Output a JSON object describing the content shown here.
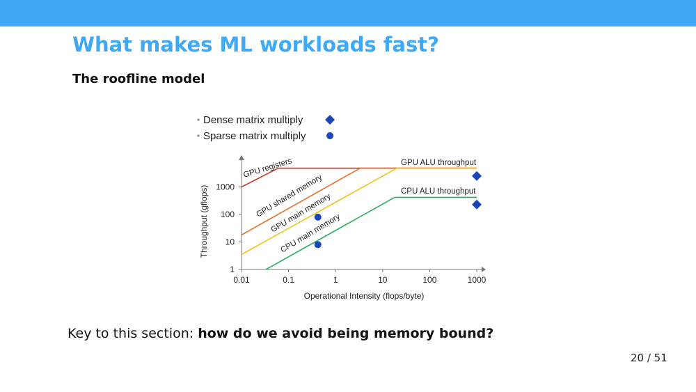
{
  "slide": {
    "title": "What makes ML workloads fast?",
    "subtitle": "The roofline model",
    "key_prefix": "Key to this section: ",
    "key_bold": "how do we avoid being memory bound?",
    "page": "20 / 51"
  },
  "colors": {
    "accent": "#3fa9f5",
    "gpu_registers": "#c0392b",
    "gpu_shared_memory": "#e8702a",
    "gpu_main_memory": "#f0c419",
    "cpu_main_memory": "#27ae60",
    "marker": "#1a44b8"
  },
  "chart_data": {
    "type": "line",
    "xscale": "log",
    "yscale": "log",
    "xlabel": "Operational Intensity (flops/byte)",
    "ylabel": "Throughput (gflops)",
    "xlim": [
      0.01,
      1000
    ],
    "ylim": [
      1,
      5000
    ],
    "x_ticks": [
      0.01,
      0.1,
      1,
      10,
      100,
      1000
    ],
    "x_tick_labels": [
      "0.01",
      "0.1",
      "1",
      "10",
      "100",
      "1000"
    ],
    "y_ticks": [
      1,
      10,
      100,
      1000
    ],
    "y_tick_labels": [
      "1",
      "10",
      "100",
      "1000"
    ],
    "legend": [
      {
        "label": "Dense matrix multiply",
        "marker": "diamond"
      },
      {
        "label": "Sparse matrix multiply",
        "marker": "circle"
      }
    ],
    "series": [
      {
        "name": "GPU registers",
        "color": "#c0392b",
        "x": [
          0.01,
          0.06,
          1000
        ],
        "y": [
          1000,
          4800,
          4800
        ]
      },
      {
        "name": "GPU shared memory",
        "color": "#e8702a",
        "x": [
          0.01,
          3.3,
          1000
        ],
        "y": [
          18,
          4800,
          4800
        ]
      },
      {
        "name": "GPU main memory",
        "color": "#f0c419",
        "x": [
          0.01,
          20,
          1000
        ],
        "y": [
          3.5,
          4800,
          4800
        ]
      },
      {
        "name": "CPU main memory",
        "color": "#27ae60",
        "x": [
          0.033,
          18,
          1000
        ],
        "y": [
          1,
          420,
          420
        ]
      }
    ],
    "roof_labels": [
      {
        "text": "GPU ALU throughput",
        "x": 30,
        "y": 4800
      },
      {
        "text": "CPU ALU throughput",
        "x": 30,
        "y": 420
      }
    ],
    "points": [
      {
        "series": "Dense matrix multiply",
        "marker": "diamond",
        "x": 1000,
        "y": 2500
      },
      {
        "series": "Dense matrix multiply",
        "marker": "diamond",
        "x": 1000,
        "y": 230
      },
      {
        "series": "Sparse matrix multiply",
        "marker": "circle",
        "x": 0.42,
        "y": 80
      },
      {
        "series": "Sparse matrix multiply",
        "marker": "circle",
        "x": 0.42,
        "y": 8
      }
    ]
  }
}
